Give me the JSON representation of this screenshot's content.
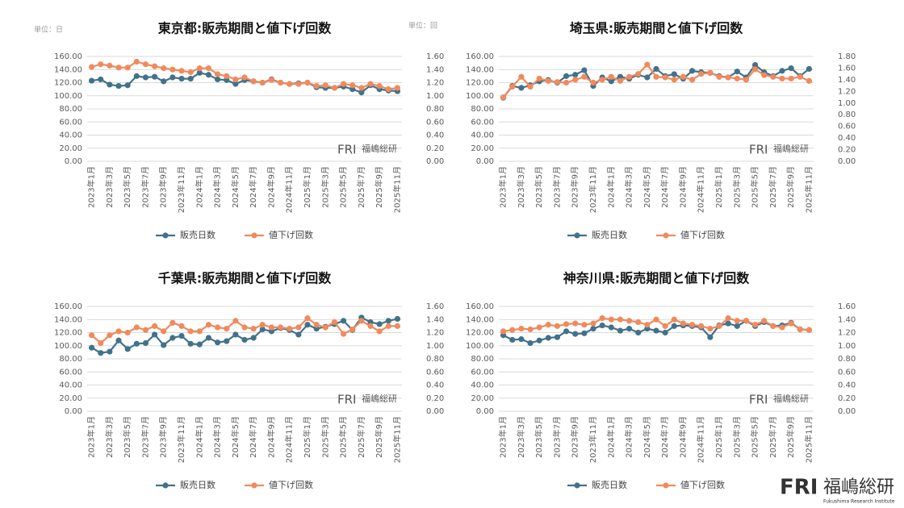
{
  "chart_data": [
    {
      "type": "line",
      "title": "東京都:販売期間と値下げ回数",
      "y_unit_label": "単位：日",
      "y2_unit_label": "単位：回",
      "categories": [
        "2023年1月",
        null,
        "2023年3月",
        null,
        "2023年5月",
        null,
        "2023年7月",
        null,
        "2023年9月",
        null,
        "2023年11月",
        null,
        "2024年1月",
        null,
        "2024年3月",
        null,
        "2024年5月",
        null,
        "2024年7月",
        null,
        "2024年9月",
        null,
        "2024年11月",
        null,
        "2025年1月",
        null,
        "2025年3月",
        null,
        "2025年5月",
        null,
        "2025年7月",
        null,
        "2025年9月",
        null,
        "2025年11月"
      ],
      "series": [
        {
          "name": "販売日数",
          "color": "#41728a",
          "values": [
            123,
            125,
            117,
            115,
            116,
            130,
            128,
            129,
            122,
            128,
            126,
            126,
            135,
            132,
            125,
            124,
            118,
            124,
            122,
            120,
            125,
            120,
            118,
            119,
            120,
            113,
            112,
            112,
            114,
            110,
            105,
            116,
            110,
            108,
            107
          ]
        },
        {
          "name": "値下げ回数",
          "color": "#f08a5d",
          "axis": "y2",
          "values": [
            1.44,
            1.48,
            1.46,
            1.43,
            1.43,
            1.52,
            1.48,
            1.45,
            1.42,
            1.4,
            1.38,
            1.36,
            1.42,
            1.42,
            1.33,
            1.3,
            1.25,
            1.28,
            1.22,
            1.2,
            1.24,
            1.2,
            1.18,
            1.18,
            1.2,
            1.15,
            1.16,
            1.12,
            1.18,
            1.16,
            1.12,
            1.18,
            1.15,
            1.1,
            1.12
          ]
        }
      ],
      "ylim": [
        0,
        160
      ],
      "yticks": [
        {
          "value": 0,
          "label": "0.00"
        },
        {
          "value": 20,
          "label": "20.00"
        },
        {
          "value": 40,
          "label": "40.00"
        },
        {
          "value": 60,
          "label": "60.00"
        },
        {
          "value": 80,
          "label": "80.00"
        },
        {
          "value": 100,
          "label": "100.00"
        },
        {
          "value": 120,
          "label": "120.00"
        },
        {
          "value": 140,
          "label": "140.00"
        },
        {
          "value": 160,
          "label": "160.00"
        }
      ],
      "y2lim": [
        0,
        1.6
      ],
      "y2ticks": [
        {
          "value": 0,
          "label": "0.00"
        },
        {
          "value": 0.2,
          "label": "0.20"
        },
        {
          "value": 0.4,
          "label": "0.40"
        },
        {
          "value": 0.6,
          "label": "0.60"
        },
        {
          "value": 0.8,
          "label": "0.80"
        },
        {
          "value": 1,
          "label": "1.00"
        },
        {
          "value": 1.2,
          "label": "1.20"
        },
        {
          "value": 1.4,
          "label": "1.40"
        },
        {
          "value": 1.6,
          "label": "1.60"
        }
      ],
      "grid": true
    },
    {
      "type": "line",
      "title": "埼玉県:販売期間と値下げ回数",
      "categories": [
        "2023年1月",
        null,
        "2023年3月",
        null,
        "2023年5月",
        null,
        "2023年7月",
        null,
        "2023年9月",
        null,
        "2023年11月",
        null,
        "2024年1月",
        null,
        "2024年3月",
        null,
        "2024年5月",
        null,
        "2024年7月",
        null,
        "2024年9月",
        null,
        "2024年11月",
        null,
        "2025年1月",
        null,
        "2025年3月",
        null,
        "2025年5月",
        null,
        "2025年7月",
        null,
        "2025年9月",
        null,
        "2025年11月"
      ],
      "series": [
        {
          "name": "販売日数",
          "color": "#41728a",
          "values": [
            97,
            115,
            112,
            116,
            122,
            124,
            120,
            130,
            132,
            139,
            115,
            128,
            122,
            129,
            126,
            132,
            128,
            141,
            130,
            133,
            126,
            138,
            136,
            135,
            130,
            128,
            137,
            128,
            147,
            136,
            130,
            138,
            142,
            130,
            141
          ]
        },
        {
          "name": "値下げ回数",
          "color": "#f08a5d",
          "axis": "y2",
          "values": [
            1.1,
            1.28,
            1.45,
            1.28,
            1.42,
            1.38,
            1.36,
            1.35,
            1.4,
            1.45,
            1.35,
            1.4,
            1.45,
            1.38,
            1.45,
            1.5,
            1.66,
            1.45,
            1.44,
            1.4,
            1.45,
            1.4,
            1.5,
            1.52,
            1.45,
            1.44,
            1.42,
            1.4,
            1.58,
            1.48,
            1.45,
            1.42,
            1.42,
            1.45,
            1.38
          ]
        }
      ],
      "ylim": [
        0,
        160
      ],
      "yticks": [
        {
          "value": 0,
          "label": "0.00"
        },
        {
          "value": 20,
          "label": "20.00"
        },
        {
          "value": 40,
          "label": "40.00"
        },
        {
          "value": 60,
          "label": "60.00"
        },
        {
          "value": 80,
          "label": "80.00"
        },
        {
          "value": 100,
          "label": "100.00"
        },
        {
          "value": 120,
          "label": "120.00"
        },
        {
          "value": 140,
          "label": "140.00"
        },
        {
          "value": 160,
          "label": "160.00"
        }
      ],
      "y2lim": [
        0,
        1.8
      ],
      "y2ticks": [
        {
          "value": 0,
          "label": "0.00"
        },
        {
          "value": 0.2,
          "label": "0.20"
        },
        {
          "value": 0.4,
          "label": "0.40"
        },
        {
          "value": 0.6,
          "label": "0.60"
        },
        {
          "value": 0.8,
          "label": "0.80"
        },
        {
          "value": 1,
          "label": "1.00"
        },
        {
          "value": 1.2,
          "label": "1.20"
        },
        {
          "value": 1.4,
          "label": "1.40"
        },
        {
          "value": 1.6,
          "label": "1.60"
        },
        {
          "value": 1.8,
          "label": "1.80"
        }
      ],
      "grid": true
    },
    {
      "type": "line",
      "title": "千葉県:販売期間と値下げ回数",
      "categories": [
        "2023年1月",
        null,
        "2023年3月",
        null,
        "2023年5月",
        null,
        "2023年7月",
        null,
        "2023年9月",
        null,
        "2023年11月",
        null,
        "2024年1月",
        null,
        "2024年3月",
        null,
        "2024年5月",
        null,
        "2024年7月",
        null,
        "2024年9月",
        null,
        "2024年11月",
        null,
        "2025年1月",
        null,
        "2025年3月",
        null,
        "2025年5月",
        null,
        "2025年7月",
        null,
        "2025年9月",
        null,
        "2025年11月"
      ],
      "series": [
        {
          "name": "販売日数",
          "color": "#41728a",
          "values": [
            97,
            89,
            91,
            108,
            95,
            103,
            104,
            117,
            101,
            112,
            115,
            103,
            102,
            112,
            105,
            107,
            117,
            109,
            112,
            125,
            122,
            127,
            124,
            117,
            132,
            126,
            129,
            133,
            138,
            124,
            143,
            136,
            133,
            138,
            141
          ]
        },
        {
          "name": "値下げ回数",
          "color": "#f08a5d",
          "axis": "y2",
          "values": [
            1.16,
            1.04,
            1.16,
            1.22,
            1.2,
            1.28,
            1.24,
            1.3,
            1.22,
            1.35,
            1.3,
            1.22,
            1.22,
            1.32,
            1.28,
            1.26,
            1.38,
            1.28,
            1.26,
            1.32,
            1.28,
            1.28,
            1.26,
            1.28,
            1.42,
            1.32,
            1.28,
            1.36,
            1.18,
            1.25,
            1.38,
            1.3,
            1.22,
            1.3,
            1.3
          ]
        }
      ],
      "ylim": [
        0,
        160
      ],
      "yticks": [
        {
          "value": 0,
          "label": "0.00"
        },
        {
          "value": 20,
          "label": "20.00"
        },
        {
          "value": 40,
          "label": "40.00"
        },
        {
          "value": 60,
          "label": "60.00"
        },
        {
          "value": 80,
          "label": "80.00"
        },
        {
          "value": 100,
          "label": "100.00"
        },
        {
          "value": 120,
          "label": "120.00"
        },
        {
          "value": 140,
          "label": "140.00"
        },
        {
          "value": 160,
          "label": "160.00"
        }
      ],
      "y2lim": [
        0,
        1.6
      ],
      "y2ticks": [
        {
          "value": 0,
          "label": "0.00"
        },
        {
          "value": 0.2,
          "label": "0.20"
        },
        {
          "value": 0.4,
          "label": "0.40"
        },
        {
          "value": 0.6,
          "label": "0.60"
        },
        {
          "value": 0.8,
          "label": "0.80"
        },
        {
          "value": 1,
          "label": "1.00"
        },
        {
          "value": 1.2,
          "label": "1.20"
        },
        {
          "value": 1.4,
          "label": "1.40"
        },
        {
          "value": 1.6,
          "label": "1.60"
        }
      ],
      "grid": true
    },
    {
      "type": "line",
      "title": "神奈川県:販売期間と値下げ回数",
      "categories": [
        "2023年1月",
        null,
        "2023年3月",
        null,
        "2023年5月",
        null,
        "2023年7月",
        null,
        "2023年9月",
        null,
        "2023年11月",
        null,
        "2024年1月",
        null,
        "2024年3月",
        null,
        "2024年5月",
        null,
        "2024年7月",
        null,
        "2024年9月",
        null,
        "2024年11月",
        null,
        "2025年1月",
        null,
        "2025年3月",
        null,
        "2025年5月",
        null,
        "2025年7月",
        null,
        "2025年9月",
        null,
        "2025年11月"
      ],
      "series": [
        {
          "name": "販売日数",
          "color": "#41728a",
          "values": [
            116,
            109,
            110,
            104,
            108,
            112,
            113,
            122,
            118,
            119,
            126,
            131,
            128,
            123,
            126,
            120,
            126,
            123,
            120,
            130,
            131,
            130,
            128,
            113,
            131,
            134,
            130,
            138,
            130,
            136,
            130,
            131,
            135,
            125,
            124
          ]
        },
        {
          "name": "値下げ回数",
          "color": "#f08a5d",
          "axis": "y2",
          "values": [
            1.22,
            1.24,
            1.26,
            1.25,
            1.28,
            1.32,
            1.3,
            1.33,
            1.34,
            1.32,
            1.34,
            1.42,
            1.4,
            1.4,
            1.38,
            1.36,
            1.32,
            1.4,
            1.3,
            1.4,
            1.34,
            1.32,
            1.3,
            1.26,
            1.3,
            1.42,
            1.38,
            1.38,
            1.32,
            1.38,
            1.3,
            1.28,
            1.34,
            1.25,
            1.24
          ]
        }
      ],
      "ylim": [
        0,
        160
      ],
      "yticks": [
        {
          "value": 0,
          "label": "0.00"
        },
        {
          "value": 20,
          "label": "20.00"
        },
        {
          "value": 40,
          "label": "40.00"
        },
        {
          "value": 60,
          "label": "60.00"
        },
        {
          "value": 80,
          "label": "80.00"
        },
        {
          "value": 100,
          "label": "100.00"
        },
        {
          "value": 120,
          "label": "120.00"
        },
        {
          "value": 140,
          "label": "140.00"
        },
        {
          "value": 160,
          "label": "160.00"
        }
      ],
      "y2lim": [
        0,
        1.6
      ],
      "y2ticks": [
        {
          "value": 0,
          "label": "0.00"
        },
        {
          "value": 0.2,
          "label": "0.20"
        },
        {
          "value": 0.4,
          "label": "0.40"
        },
        {
          "value": 0.6,
          "label": "0.60"
        },
        {
          "value": 0.8,
          "label": "0.80"
        },
        {
          "value": 1,
          "label": "1.00"
        },
        {
          "value": 1.2,
          "label": "1.20"
        },
        {
          "value": 1.4,
          "label": "1.40"
        },
        {
          "value": 1.6,
          "label": "1.60"
        }
      ],
      "grid": true
    }
  ],
  "brand": {
    "logo": "FRI",
    "name": "福嶋総研",
    "sub": "Fukushima Research Institute"
  }
}
